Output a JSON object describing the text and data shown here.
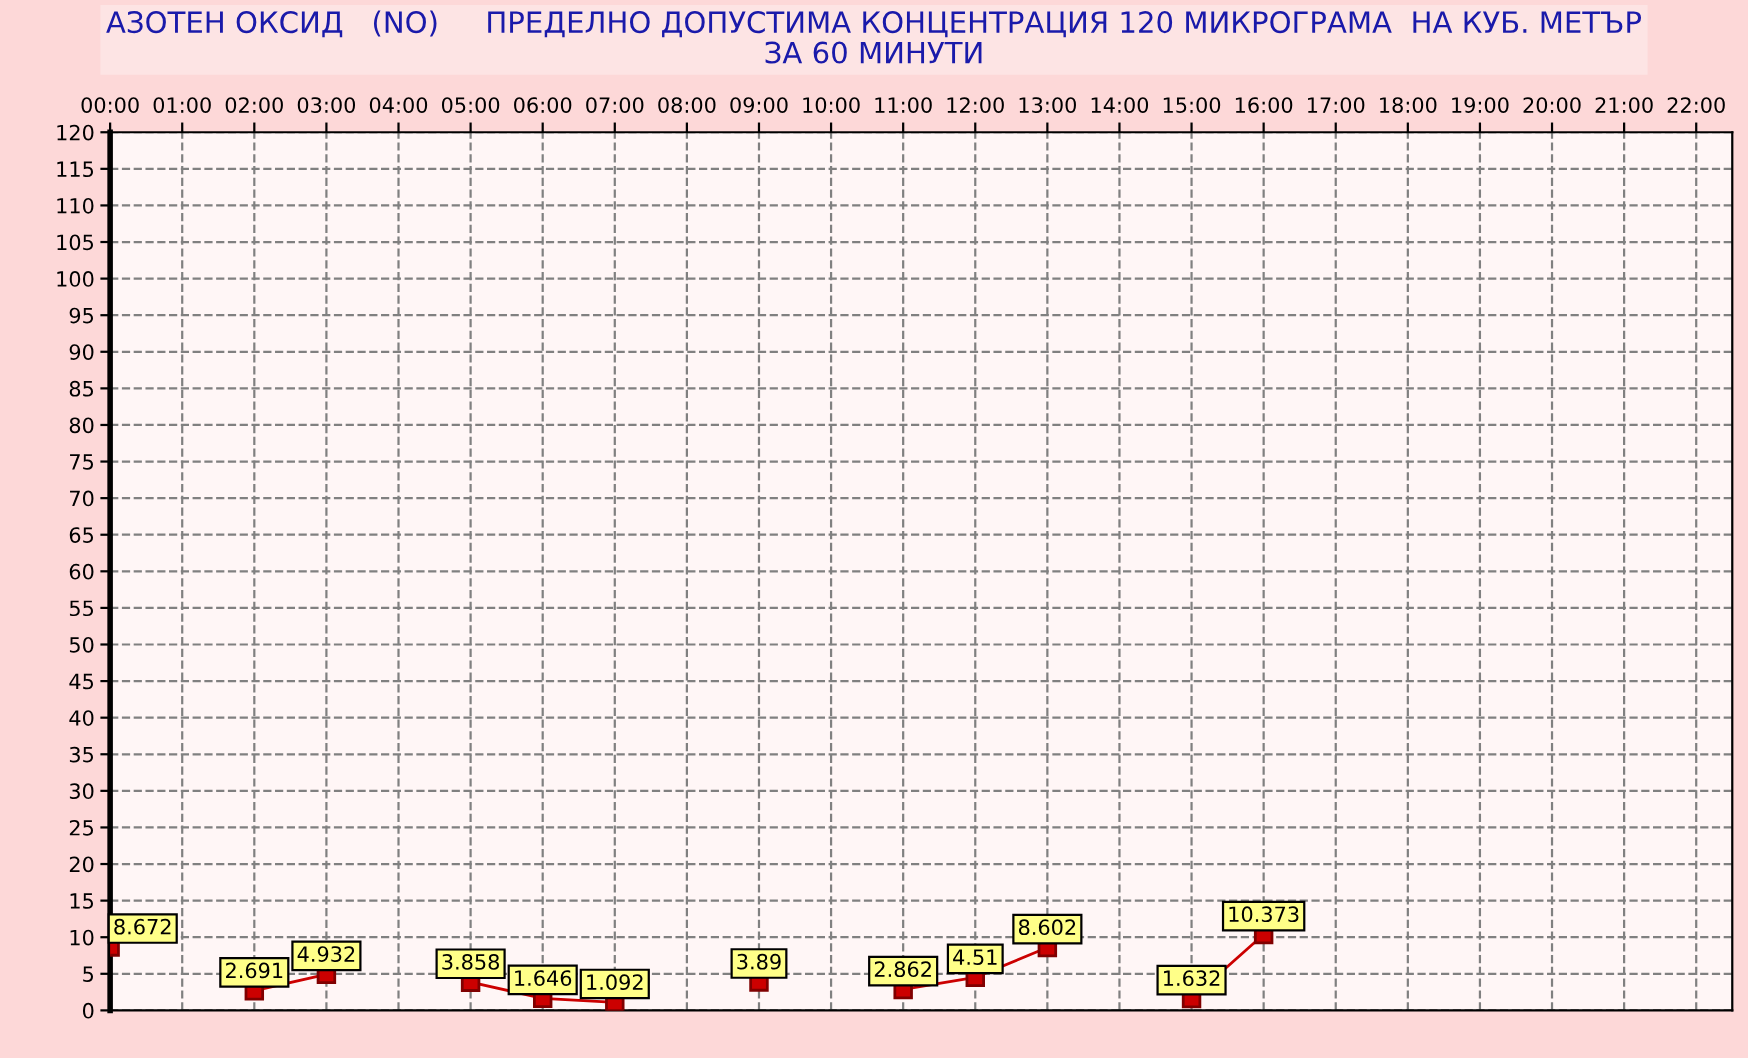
{
  "chart_data": {
    "type": "line",
    "title": "АЗОТЕН ОКСИД   (NO)     ПРЕДЕЛНО ДОПУСТИМА КОНЦЕНТРАЦИЯ 120 МИКРОГРАМА  НА КУБ. МЕТЪР\nЗА 60 МИНУТИ",
    "x": [
      0,
      1,
      2,
      3,
      4,
      5,
      6,
      7,
      8,
      9,
      10,
      11,
      12,
      13,
      14,
      15,
      16
    ],
    "series": [
      {
        "color": "#cc0000",
        "values": [
          8.672,
          null,
          2.691,
          4.932,
          null,
          3.858,
          1.646,
          1.092,
          null,
          3.89,
          null,
          2.862,
          4.51,
          8.602,
          null,
          1.632,
          10.373
        ]
      }
    ],
    "xlim": [
      0,
      22.5
    ],
    "xticks": [
      {
        "value": 0,
        "label": "00:00"
      },
      {
        "value": 1,
        "label": "01:00"
      },
      {
        "value": 2,
        "label": "02:00"
      },
      {
        "value": 3,
        "label": "03:00"
      },
      {
        "value": 4,
        "label": "04:00"
      },
      {
        "value": 5,
        "label": "05:00"
      },
      {
        "value": 6,
        "label": "06:00"
      },
      {
        "value": 7,
        "label": "07:00"
      },
      {
        "value": 8,
        "label": "08:00"
      },
      {
        "value": 9,
        "label": "09:00"
      },
      {
        "value": 10,
        "label": "10:00"
      },
      {
        "value": 11,
        "label": "11:00"
      },
      {
        "value": 12,
        "label": "12:00"
      },
      {
        "value": 13,
        "label": "13:00"
      },
      {
        "value": 14,
        "label": "14:00"
      },
      {
        "value": 15,
        "label": "15:00"
      },
      {
        "value": 16,
        "label": "16:00"
      },
      {
        "value": 17,
        "label": "17:00"
      },
      {
        "value": 18,
        "label": "18:00"
      },
      {
        "value": 19,
        "label": "19:00"
      },
      {
        "value": 20,
        "label": "20:00"
      },
      {
        "value": 21,
        "label": "21:00"
      },
      {
        "value": 22,
        "label": "22:00"
      }
    ],
    "ylim": [
      0,
      120
    ],
    "yticks": [
      0,
      5,
      10,
      15,
      20,
      25,
      30,
      35,
      40,
      45,
      50,
      55,
      60,
      65,
      70,
      75,
      80,
      85,
      90,
      95,
      100,
      105,
      110,
      115,
      120
    ],
    "grid": true,
    "marker": "square",
    "line_style": "solid",
    "data_labels": true
  }
}
